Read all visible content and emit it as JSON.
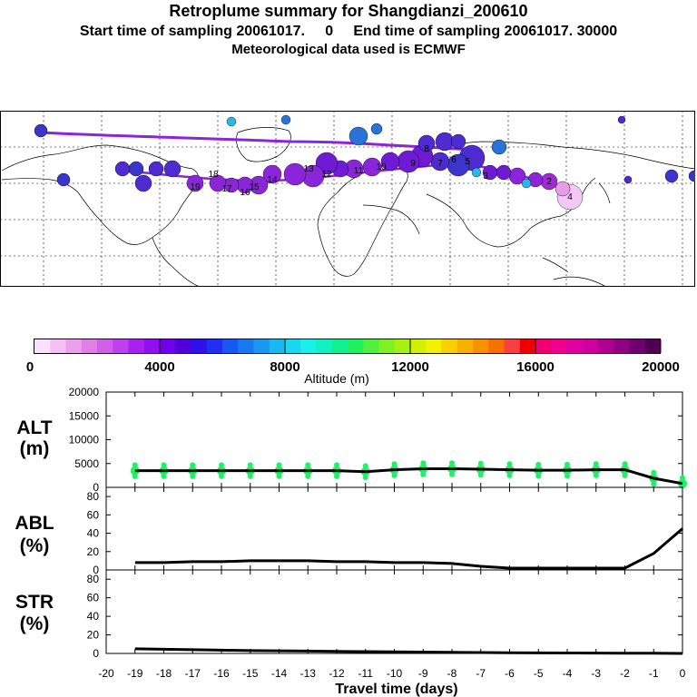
{
  "header": {
    "title": "Retroplume summary for Shangdianzi_200610",
    "subtitle": "Start time of sampling 20061017.     0     End time of sampling 20061017. 30000",
    "meteo": "Meteorological data used is ECMWF"
  },
  "map": {
    "plume_colors": [
      "#f4c8f4",
      "#e89be8",
      "#c23ad8",
      "#a02bd4",
      "#8b25d9",
      "#6f1bd3",
      "#4e2ad1",
      "#3b35cc",
      "#2a73d6",
      "#2ab6ea"
    ],
    "trajectory": [
      {
        "label": "4"
      },
      {
        "label": "2"
      },
      {
        "label": "3"
      },
      {
        "label": "5"
      },
      {
        "label": "6"
      },
      {
        "label": "7"
      },
      {
        "label": "8"
      },
      {
        "label": "9"
      },
      {
        "label": "10"
      },
      {
        "label": "11"
      },
      {
        "label": "12"
      },
      {
        "label": "13"
      },
      {
        "label": "14"
      },
      {
        "label": "15"
      },
      {
        "label": "16"
      },
      {
        "label": "17"
      },
      {
        "label": "18"
      },
      {
        "label": "19"
      }
    ]
  },
  "colorbar": {
    "ticks": [
      "0",
      "4000",
      "8000",
      "12000",
      "16000",
      "20000"
    ],
    "label": "Altitude (m)",
    "colors": [
      "#fbe0fb",
      "#f4c0f4",
      "#eaa0ea",
      "#e080e6",
      "#d060e8",
      "#c040ee",
      "#aa20f0",
      "#9010f0",
      "#7000e8",
      "#5000d8",
      "#3010e8",
      "#2030f0",
      "#1858f0",
      "#1878f0",
      "#1898f0",
      "#18b8f0",
      "#18d8f0",
      "#18f0e8",
      "#10f0c0",
      "#10f090",
      "#20f060",
      "#50f040",
      "#80f020",
      "#a8f010",
      "#d0f000",
      "#f0f000",
      "#f8d000",
      "#f8b000",
      "#f89000",
      "#f87000",
      "#f84040",
      "#f00000",
      "#f00070",
      "#f0008c",
      "#e000a0",
      "#d000a0",
      "#b00090",
      "#900080",
      "#700070",
      "#500050"
    ]
  },
  "chart_data": [
    {
      "type": "line",
      "ylabel": "ALT\n(m)",
      "x": [
        -19,
        -18,
        -17,
        -16,
        -15,
        -14,
        -13,
        -12,
        -11,
        -10,
        -9,
        -8,
        -7,
        -6,
        -5,
        -4,
        -3,
        -2,
        -1,
        0
      ],
      "values": [
        3500,
        3500,
        3500,
        3500,
        3500,
        3500,
        3500,
        3500,
        3300,
        3700,
        3900,
        3900,
        3800,
        3700,
        3600,
        3600,
        3700,
        3700,
        1900,
        800
      ],
      "scatter_colors": [
        "#22ee66"
      ],
      "ylim": [
        0,
        20000
      ],
      "yticks": [
        "0",
        "5000",
        "10000",
        "15000",
        "20000"
      ]
    },
    {
      "type": "line",
      "ylabel": "ABL\n(%)",
      "x": [
        -19,
        -18,
        -17,
        -16,
        -15,
        -14,
        -13,
        -12,
        -11,
        -10,
        -9,
        -8,
        -7,
        -6,
        -5,
        -4,
        -3,
        -2,
        -1,
        0
      ],
      "values": [
        8,
        8,
        9,
        9,
        10,
        10,
        10,
        9,
        9,
        8,
        8,
        7,
        4,
        2,
        2,
        2,
        2,
        2,
        18,
        45
      ],
      "ylim": [
        0,
        90
      ],
      "yticks": [
        "0",
        "20",
        "40",
        "60",
        "80"
      ]
    },
    {
      "type": "line",
      "ylabel": "STR\n(%)",
      "x": [
        -19,
        -18,
        -17,
        -16,
        -15,
        -14,
        -13,
        -12,
        -11,
        -10,
        -9,
        -8,
        -7,
        -6,
        -5,
        -4,
        -3,
        -2,
        -1,
        0
      ],
      "values": [
        5,
        4.5,
        4,
        3.5,
        3,
        2.8,
        2.5,
        2.2,
        2,
        1.8,
        1.5,
        1.2,
        1,
        0.8,
        0.6,
        0.5,
        0.4,
        0.3,
        0.2,
        0
      ],
      "ylim": [
        0,
        90
      ],
      "yticks": [
        "0",
        "20",
        "40",
        "60",
        "80"
      ]
    }
  ],
  "xaxis": {
    "label": "Travel time (days)",
    "ticks": [
      "-20",
      "-19",
      "-18",
      "-17",
      "-16",
      "-15",
      "-14",
      "-13",
      "-12",
      "-11",
      "-10",
      "-9",
      "-8",
      "-7",
      "-6",
      "-5",
      "-4",
      "-3",
      "-2",
      "-1",
      "0"
    ]
  },
  "panel_labels": {
    "alt_top": "ALT",
    "alt_bottom": "(m)",
    "abl_top": "ABL",
    "abl_bottom": "(%)",
    "str_top": "STR",
    "str_bottom": "(%)"
  }
}
